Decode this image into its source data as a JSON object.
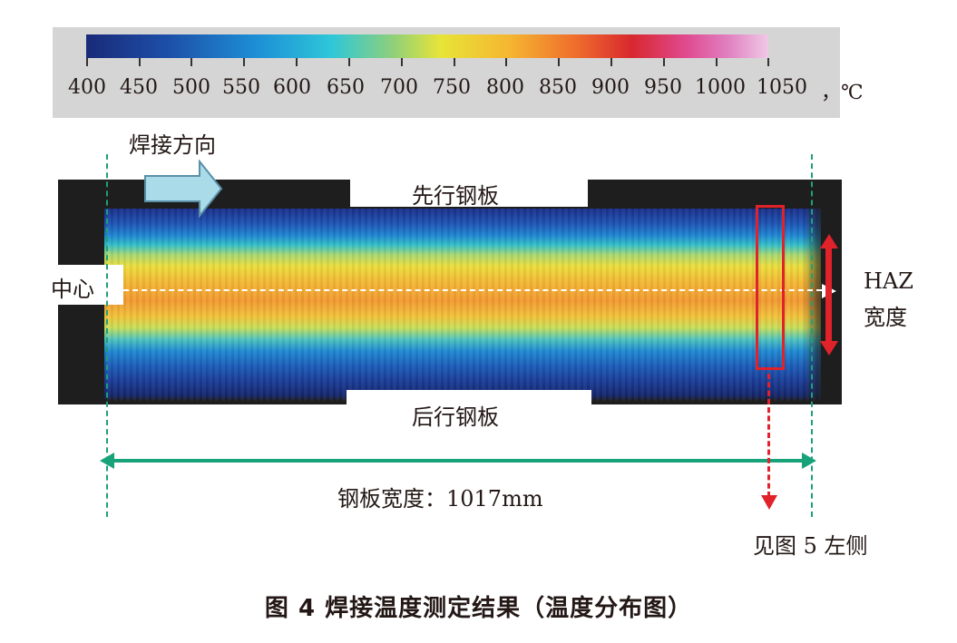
{
  "legend": {
    "tick_labels": [
      "400",
      "450",
      "500",
      "550",
      "600",
      "650",
      "700",
      "750",
      "800",
      "850",
      "900",
      "950",
      "1000",
      "1050"
    ],
    "unit": "，℃"
  },
  "labels": {
    "weld_direction": "焊接方向",
    "leading_plate": "先行钢板",
    "trailing_plate": "后行钢板",
    "center": "中心",
    "haz_width_line1": "HAZ",
    "haz_width_line2": "宽度",
    "plate_width": "钢板宽度：1017mm",
    "see_figure": "见图 5 左侧"
  },
  "caption": "图 4  焊接温度测定结果（温度分布图）",
  "colors": {
    "accent_green": "#17a27a",
    "marker_red": "#e0222a",
    "direction_arrow": "#a9dbe8"
  }
}
